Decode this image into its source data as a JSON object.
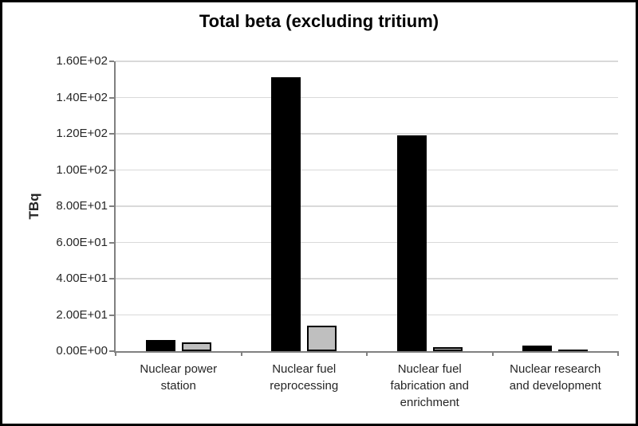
{
  "chart": {
    "title": "Total beta (excluding tritium)",
    "y_axis_title": "TBq",
    "legend": "none"
  },
  "colors": {
    "bar_black": "#000000",
    "bar_gray_fill": "#BFBFBF",
    "bar_gray_outline": "#000000",
    "axis_line": "#808080",
    "gridline": "#D9D9D9",
    "tick_text": "#262626",
    "frame_border": "#000000",
    "background": "#FFFFFF"
  },
  "chart_data": {
    "type": "bar",
    "title": "Total beta (excluding tritium)",
    "categories": [
      "Nuclear power station",
      "Nuclear fuel reprocessing",
      "Nuclear fuel fabrication and enrichment",
      "Nuclear research and development"
    ],
    "series": [
      {
        "name": "black-bars",
        "color": "#000000",
        "outline": "#000000",
        "values": [
          6,
          151,
          119,
          3
        ]
      },
      {
        "name": "gray-bars",
        "color": "#BFBFBF",
        "outline": "#000000",
        "values": [
          5,
          14,
          2,
          1
        ]
      }
    ],
    "xlabel": "",
    "ylabel": "TBq",
    "ylim": [
      0,
      160
    ],
    "y_tick_step": 20,
    "y_tick_labels": [
      "0.00E+00",
      "2.00E+01",
      "4.00E+01",
      "6.00E+01",
      "8.00E+01",
      "1.00E+02",
      "1.20E+02",
      "1.40E+02",
      "1.60E+02"
    ],
    "grid": "horizontal",
    "legend": "none"
  }
}
